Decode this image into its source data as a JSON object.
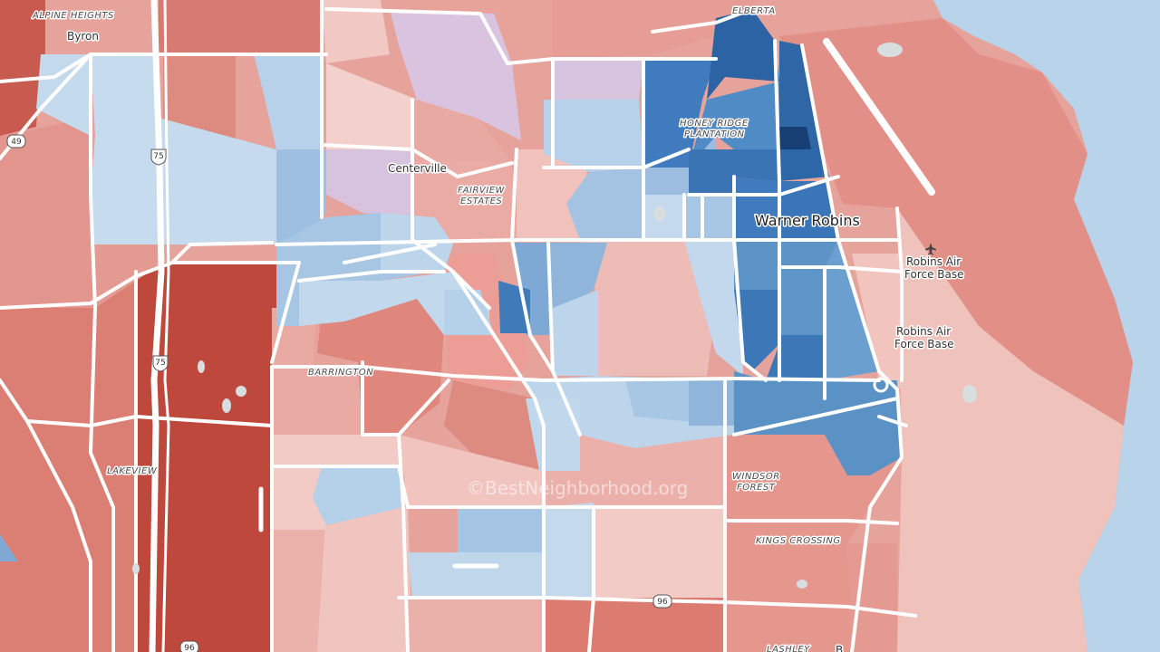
{
  "map": {
    "watermark": "©BestNeighborhood.org",
    "places": {
      "alpine_heights": "ALPINE HEIGHTS",
      "byron": "Byron",
      "elberta": "ELBERTA",
      "honey_ridge_1": "HONEY RIDGE",
      "honey_ridge_2": "PLANTATION",
      "centerville": "Centerville",
      "fairview_1": "FAIRVIEW",
      "fairview_2": "ESTATES",
      "warner_robins": "Warner Robins",
      "afb_1": "Robins Air",
      "afb_2": "Force Base",
      "base_1": "Robins Air",
      "base_2": "Force Base",
      "barrington": "BARRINGTON",
      "lakeview": "LAKEVIEW",
      "windsor_1": "WINDSOR",
      "windsor_2": "FOREST",
      "kings_crossing": "KINGS CROSSING",
      "lashley": "LASHLEY",
      "bottom_right_partial": "B"
    },
    "shields": {
      "i75_top": "75",
      "i75_mid": "75",
      "us49": "49",
      "us96_mid": "96",
      "us96_bottom": "96"
    },
    "icons": {
      "airport": "airplane-icon"
    },
    "colors": {
      "water": "#b9d3ea",
      "strong_red": "#c1483d",
      "red": "#dd8178",
      "light_red": "#eab3ad",
      "pale_red": "#f1cbc7",
      "purple": "#d7c3df",
      "light_blue": "#c3d9ec",
      "blue": "#8fb6db",
      "mid_blue": "#5e95c8",
      "dark_blue": "#2f68a8",
      "navy": "#1c4f8c",
      "road": "#ffffff"
    }
  }
}
